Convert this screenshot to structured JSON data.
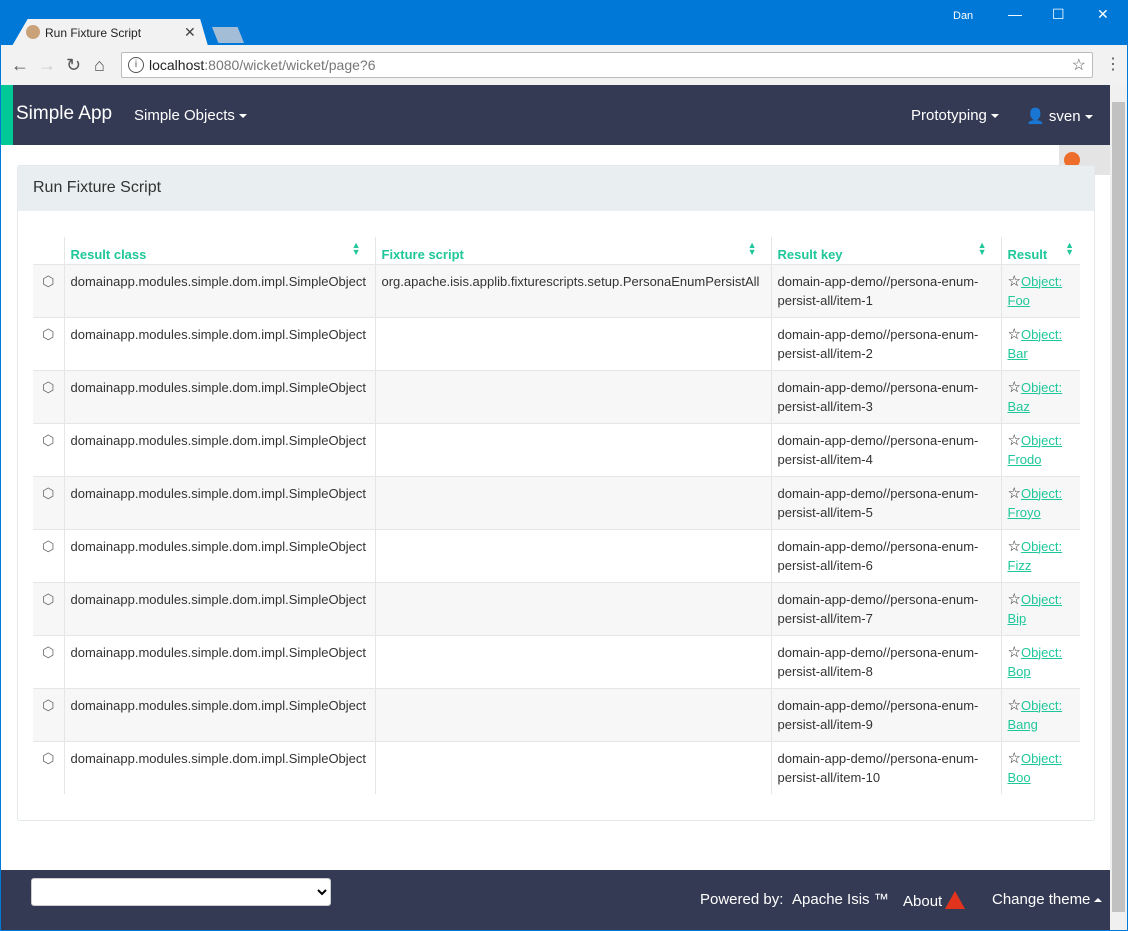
{
  "browser": {
    "tab_title": "Run Fixture Script",
    "user": "Dan",
    "url_host": "localhost",
    "url_rest": ":8080/wicket/wicket/page?6"
  },
  "navbar": {
    "brand": "Simple App",
    "menu": "Simple Objects",
    "prototyping": "Prototyping",
    "user": "sven"
  },
  "panel": {
    "title": "Run Fixture Script"
  },
  "table": {
    "headers": [
      "Result class",
      "Fixture script",
      "Result key",
      "Result"
    ],
    "rows": [
      {
        "cls": "domainapp.modules.simple.dom.impl.SimpleObject",
        "script": "org.apache.isis.applib.fixturescripts.setup.PersonaEnumPersistAll",
        "key": "domain-app-demo//persona-enum-persist-all/item-1",
        "result": "Object: Foo"
      },
      {
        "cls": "domainapp.modules.simple.dom.impl.SimpleObject",
        "script": "",
        "key": "domain-app-demo//persona-enum-persist-all/item-2",
        "result": "Object: Bar"
      },
      {
        "cls": "domainapp.modules.simple.dom.impl.SimpleObject",
        "script": "",
        "key": "domain-app-demo//persona-enum-persist-all/item-3",
        "result": "Object: Baz"
      },
      {
        "cls": "domainapp.modules.simple.dom.impl.SimpleObject",
        "script": "",
        "key": "domain-app-demo//persona-enum-persist-all/item-4",
        "result": "Object: Frodo"
      },
      {
        "cls": "domainapp.modules.simple.dom.impl.SimpleObject",
        "script": "",
        "key": "domain-app-demo//persona-enum-persist-all/item-5",
        "result": "Object: Froyo"
      },
      {
        "cls": "domainapp.modules.simple.dom.impl.SimpleObject",
        "script": "",
        "key": "domain-app-demo//persona-enum-persist-all/item-6",
        "result": "Object: Fizz"
      },
      {
        "cls": "domainapp.modules.simple.dom.impl.SimpleObject",
        "script": "",
        "key": "domain-app-demo//persona-enum-persist-all/item-7",
        "result": "Object: Bip"
      },
      {
        "cls": "domainapp.modules.simple.dom.impl.SimpleObject",
        "script": "",
        "key": "domain-app-demo//persona-enum-persist-all/item-8",
        "result": "Object: Bop"
      },
      {
        "cls": "domainapp.modules.simple.dom.impl.SimpleObject",
        "script": "",
        "key": "domain-app-demo//persona-enum-persist-all/item-9",
        "result": "Object: Bang"
      },
      {
        "cls": "domainapp.modules.simple.dom.impl.SimpleObject",
        "script": "",
        "key": "domain-app-demo//persona-enum-persist-all/item-10",
        "result": "Object: Boo"
      }
    ]
  },
  "footer": {
    "powered": "Powered by:",
    "isis": "Apache Isis ™",
    "about": "About",
    "theme": "Change theme"
  },
  "colors": {
    "navbar": "#343a54",
    "accent": "#1fc79a"
  }
}
